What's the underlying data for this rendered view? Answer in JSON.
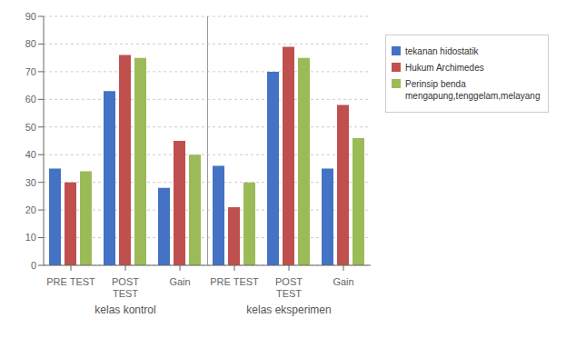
{
  "chart_data": {
    "type": "bar",
    "categories": [
      "PRE TEST",
      "POST\nTEST",
      "Gain",
      "PRE TEST",
      "POST\nTEST",
      "Gain"
    ],
    "series": [
      {
        "name": "tekanan hidostatik",
        "color": "#4472C4",
        "values": [
          35,
          63,
          28,
          36,
          70,
          35
        ]
      },
      {
        "name": "Hukum Archimedes",
        "color": "#C0504D",
        "values": [
          30,
          76,
          45,
          21,
          79,
          58
        ]
      },
      {
        "name": "Perinsip benda\nmengapung,tenggelam,melayang",
        "color": "#9BBB59",
        "values": [
          34,
          75,
          40,
          30,
          75,
          46
        ]
      }
    ],
    "annotations": [
      "kelas kontrol",
      "kelas eksperimen"
    ],
    "ylim": [
      0,
      90
    ],
    "yticks": [
      0,
      10,
      20,
      30,
      40,
      50,
      60,
      70,
      80,
      90
    ],
    "grid": true,
    "legend": "right"
  }
}
